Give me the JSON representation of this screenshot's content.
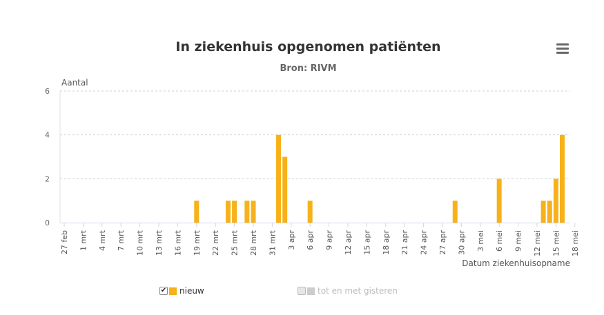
{
  "chart_data": {
    "type": "bar",
    "title": "In ziekenhuis opgenomen patiënten",
    "subtitle": "Bron: RIVM",
    "ylabel": "Aantal",
    "xlabel": "Datum ziekenhuisopname",
    "ylim": [
      0,
      6
    ],
    "yticks": [
      0,
      2,
      4,
      6
    ],
    "x_start": "27 feb",
    "x_end": "18 mei",
    "xticks": [
      "27 feb",
      "1 mrt",
      "4 mrt",
      "7 mrt",
      "10 mrt",
      "13 mrt",
      "16 mrt",
      "19 mrt",
      "22 mrt",
      "25 mrt",
      "28 mrt",
      "31 mrt",
      "3 apr",
      "6 apr",
      "9 apr",
      "12 apr",
      "15 apr",
      "18 apr",
      "21 apr",
      "24 apr",
      "27 apr",
      "30 apr",
      "3 mei",
      "6 mei",
      "9 mei",
      "12 mei",
      "15 mei",
      "18 mei"
    ],
    "grid": true,
    "series": [
      {
        "name": "nieuw",
        "color": "#f7b21a",
        "points": [
          {
            "x": "19 mrt",
            "y": 1
          },
          {
            "x": "24 mrt",
            "y": 1
          },
          {
            "x": "25 mrt",
            "y": 1
          },
          {
            "x": "27 mrt",
            "y": 1
          },
          {
            "x": "28 mrt",
            "y": 1
          },
          {
            "x": "1 apr",
            "y": 4
          },
          {
            "x": "2 apr",
            "y": 3
          },
          {
            "x": "6 apr",
            "y": 1
          },
          {
            "x": "29 apr",
            "y": 1
          },
          {
            "x": "6 mei",
            "y": 2
          },
          {
            "x": "13 mei",
            "y": 1
          },
          {
            "x": "14 mei",
            "y": 1
          },
          {
            "x": "15 mei",
            "y": 2
          },
          {
            "x": "16 mei",
            "y": 4
          }
        ]
      },
      {
        "name": "tot en met gisteren",
        "color": "#cccccc",
        "points": []
      }
    ]
  },
  "legend": [
    {
      "label": "nieuw",
      "checked": true,
      "color": "#f7b21a"
    },
    {
      "label": "tot en met gisteren",
      "checked": false,
      "color": "#cccccc"
    }
  ]
}
